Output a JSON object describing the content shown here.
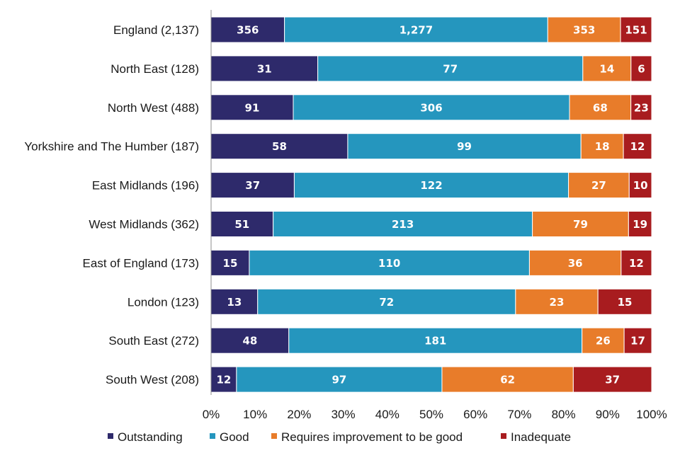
{
  "chart_data": {
    "type": "bar",
    "orientation": "horizontal",
    "stacked": "percent",
    "title": "",
    "xlabel": "",
    "ylabel": "",
    "xlim": [
      0,
      100
    ],
    "categories": [
      "England (2,137)",
      "North East (128)",
      "North West (488)",
      "Yorkshire and The Humber (187)",
      "East Midlands (196)",
      "West Midlands (362)",
      "East of England (173)",
      "London (123)",
      "South East (272)",
      "South West (208)"
    ],
    "series": [
      {
        "name": "Outstanding",
        "color": "#2e2a6b",
        "values": [
          356,
          31,
          91,
          58,
          37,
          51,
          15,
          13,
          48,
          12
        ],
        "labels": [
          "356",
          "31",
          "91",
          "58",
          "37",
          "51",
          "15",
          "13",
          "48",
          "12"
        ]
      },
      {
        "name": "Good",
        "color": "#2596be",
        "values": [
          1277,
          77,
          306,
          99,
          122,
          213,
          110,
          72,
          181,
          97
        ],
        "labels": [
          "1,277",
          "77",
          "306",
          "99",
          "122",
          "213",
          "110",
          "72",
          "181",
          "97"
        ]
      },
      {
        "name": "Requires improvement to be good",
        "color": "#e87c2a",
        "values": [
          353,
          14,
          68,
          18,
          27,
          79,
          36,
          23,
          26,
          62
        ],
        "labels": [
          "353",
          "14",
          "68",
          "18",
          "27",
          "79",
          "36",
          "23",
          "26",
          "62"
        ]
      },
      {
        "name": "Inadequate",
        "color": "#a81c1f",
        "values": [
          151,
          6,
          23,
          12,
          10,
          19,
          12,
          15,
          17,
          37
        ],
        "labels": [
          "151",
          "6",
          "23",
          "12",
          "10",
          "19",
          "12",
          "15",
          "17",
          "37"
        ]
      }
    ],
    "x_ticks": [
      "0%",
      "10%",
      "20%",
      "30%",
      "40%",
      "50%",
      "60%",
      "70%",
      "80%",
      "90%",
      "100%"
    ],
    "legend_position": "bottom",
    "grid": false
  }
}
